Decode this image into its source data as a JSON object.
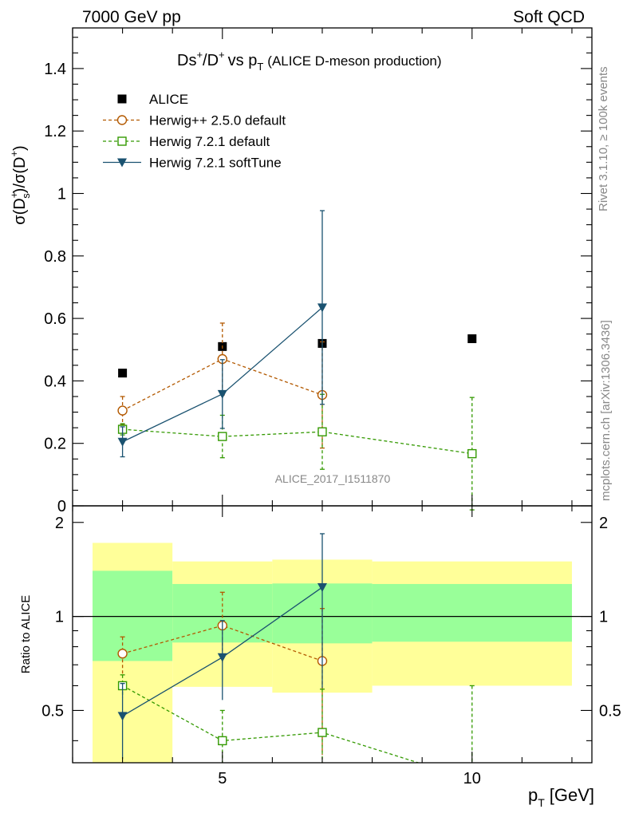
{
  "header": {
    "left": "7000 GeV pp",
    "right": "Soft QCD"
  },
  "side_labels": {
    "rivet": "Rivet 3.1.10, ≥ 100k events",
    "mcplots": "mcplots.cern.ch [arXiv:1306.3436]"
  },
  "colors": {
    "data": "#000000",
    "herwigpp": "#b35900",
    "herwig721": "#339900",
    "softtune": "#1a5270",
    "band_inner": "#99ff99",
    "band_outer": "#ffff99",
    "watermark": "#888888"
  },
  "chart_data": [
    {
      "type": "scatter",
      "title": "Ds⁺/D⁺ vs p_T (ALICE D-meson production)",
      "title_main": "Ds",
      "title_vs": "vs p",
      "title_sub": "(ALICE D-meson production)",
      "ylabel": "σ(Dₛ⁺)/σ(D⁺)",
      "xlabel": "",
      "watermark": "ALICE_2017_I1511870",
      "xlim": [
        2,
        12.4
      ],
      "ylim": [
        0,
        1.53
      ],
      "yticks": [
        0,
        0.2,
        0.4,
        0.6,
        0.8,
        1,
        1.2,
        1.4
      ],
      "ytick_labels": [
        "0",
        "0.2",
        "0.4",
        "0.6",
        "0.8",
        "1",
        "1.2",
        "1.4"
      ],
      "legend": [
        "ALICE",
        "Herwig++ 2.5.0 default",
        "Herwig 7.2.1 default",
        "Herwig 7.2.1 softTune"
      ],
      "series": [
        {
          "name": "ALICE",
          "marker": "square-filled",
          "x": [
            3,
            5,
            7,
            10
          ],
          "y": [
            0.425,
            0.51,
            0.52,
            0.535
          ],
          "err": [
            0,
            0,
            0,
            0
          ]
        },
        {
          "name": "Herwig++ 2.5.0 default",
          "marker": "circle-open",
          "style": "dashed",
          "x": [
            3,
            5,
            7
          ],
          "y": [
            0.305,
            0.47,
            0.355
          ],
          "err": [
            0.045,
            0.115,
            0.17
          ]
        },
        {
          "name": "Herwig 7.2.1 default",
          "marker": "square-open",
          "style": "dashed",
          "x": [
            3,
            5,
            7,
            10
          ],
          "y": [
            0.245,
            0.222,
            0.237,
            0.167
          ],
          "err": [
            0.018,
            0.068,
            0.12,
            0.18
          ]
        },
        {
          "name": "Herwig 7.2.1 softTune",
          "marker": "triangle-down",
          "style": "solid",
          "x": [
            3,
            5,
            7
          ],
          "y": [
            0.205,
            0.358,
            0.635
          ],
          "err": [
            0.048,
            0.11,
            0.31
          ]
        }
      ]
    },
    {
      "type": "scatter",
      "title": "",
      "ylabel": "Ratio to ALICE",
      "xlabel": "p_T [GeV]",
      "xlabel_main": "p",
      "xlabel_unit": "[GeV]",
      "xlim": [
        2,
        12.4
      ],
      "ylim": [
        0.34,
        2.26
      ],
      "reference_line": 1,
      "xticks": [
        5,
        10
      ],
      "xtick_labels": [
        "5",
        "10"
      ],
      "yticks": [
        0.5,
        1,
        2
      ],
      "ytick_labels": [
        "0.5",
        "1",
        "2"
      ],
      "bands": [
        {
          "xmin": 2.4,
          "xmax": 4,
          "inner": [
            0.72,
            1.4
          ],
          "outer": [
            0.34,
            1.72
          ]
        },
        {
          "xmin": 4,
          "xmax": 6,
          "inner": [
            0.825,
            1.27
          ],
          "outer": [
            0.595,
            1.5
          ]
        },
        {
          "xmin": 6,
          "xmax": 8,
          "inner": [
            0.82,
            1.275
          ],
          "outer": [
            0.57,
            1.52
          ]
        },
        {
          "xmin": 8,
          "xmax": 12,
          "inner": [
            0.83,
            1.27
          ],
          "outer": [
            0.6,
            1.5
          ]
        }
      ],
      "series": [
        {
          "name": "Herwig++ 2.5.0 default",
          "x": [
            3,
            5,
            7
          ],
          "y": [
            0.76,
            0.935,
            0.72
          ],
          "err_low": [
            0.11,
            0.23,
            0.36
          ],
          "err_high": [
            0.1,
            0.26,
            0.34
          ]
        },
        {
          "name": "Herwig 7.2.1 default",
          "x": [
            3,
            5,
            7,
            10
          ],
          "y": [
            0.6,
            0.4,
            0.425,
            0.3
          ],
          "err_low": [
            0.05,
            0.1,
            0.16,
            0.3
          ],
          "err_high": [
            0.05,
            0.1,
            0.16,
            0.3
          ]
        },
        {
          "name": "Herwig 7.2.1 softTune",
          "x": [
            3,
            5,
            7
          ],
          "y": [
            0.48,
            0.74,
            1.24
          ],
          "err_low": [
            0.13,
            0.2,
            0.65
          ],
          "err_high": [
            0.13,
            0.23,
            0.6
          ]
        }
      ]
    }
  ]
}
